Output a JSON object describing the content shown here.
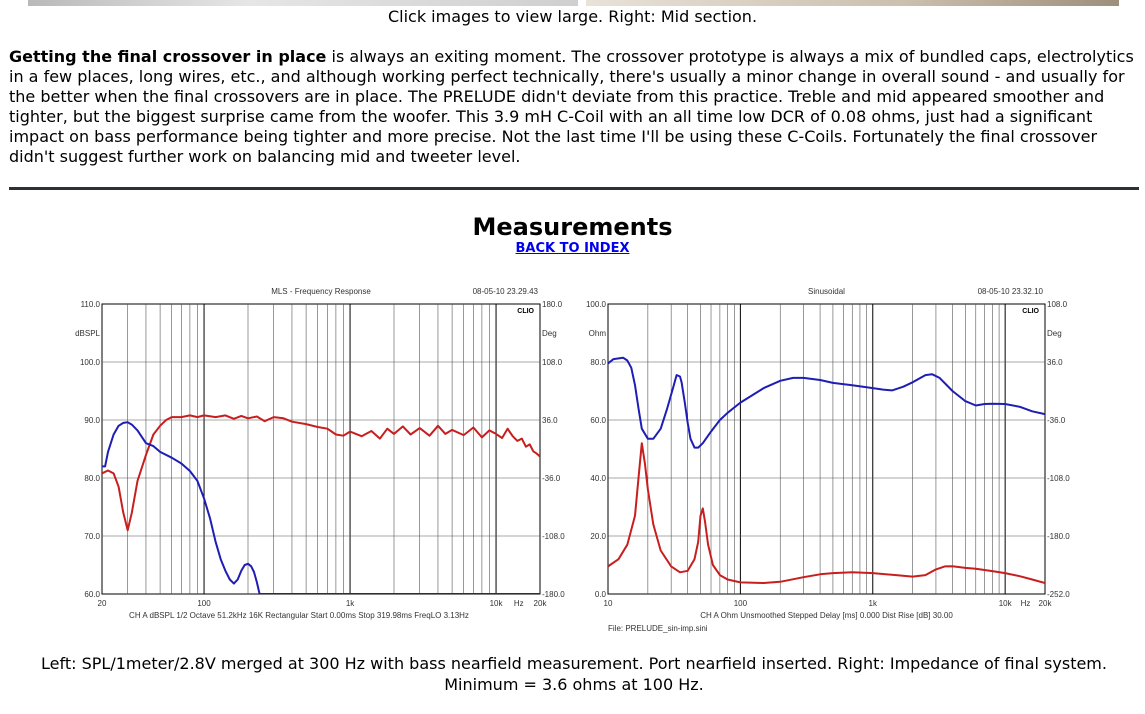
{
  "caption_top": "Click images to view large. Right: Mid section.",
  "article": {
    "lead": "Getting the final crossover in place",
    "body": " is always an exiting moment. The crossover prototype is always a mix of bundled caps, electrolytics in a few places, long wires, etc., and although working perfect technically, there's usually a minor change in overall sound - and usually for the better when the final crossovers are in place. The PRELUDE didn't deviate from this practice. Treble and mid appeared smoother and tighter, but the biggest surprise came from the woofer. This 3.9 mH C-Coil with an all time low DCR of 0.08 ohms, just had a significant impact on bass performance being tighter and more precise. Not the last time I'll be using these C-Coils. Fortunately the final crossover didn't suggest further work on balancing mid and tweeter level."
  },
  "heading": "Measurements",
  "back_link": "BACK TO INDEX",
  "caption_bottom": "Left: SPL/1meter/2.8V merged at 300 Hz with bass nearfield measurement. Port nearfield inserted. Right: Impedance of final system. Minimum = 3.6 ohms at 100 Hz.",
  "chart_data": [
    {
      "type": "line",
      "title": "MLS - Frequency Response",
      "timestamp": "08-05-10 23.29.43",
      "brand": "CLIO",
      "x_scale": "log",
      "xlim": [
        20,
        20000
      ],
      "x_ticks": [
        {
          "v": 20,
          "t": "20"
        },
        {
          "v": 100,
          "t": "100"
        },
        {
          "v": 1000,
          "t": "1k"
        },
        {
          "v": 10000,
          "t": "10k"
        },
        {
          "v": 20000,
          "t": "20k"
        }
      ],
      "x_unit": "Hz",
      "ylim": [
        60,
        110
      ],
      "y_ticks": [
        "110.0",
        "100.0",
        "90.0",
        "80.0",
        "70.0",
        "60.0"
      ],
      "y_unit": "dBSPL",
      "y2lim": [
        -180,
        180
      ],
      "y2_ticks": [
        "180.0",
        "108.0",
        "36.0",
        "-36.0",
        "-108.0",
        "-180.0"
      ],
      "y2_unit": "Deg",
      "footer": "CH A  dBSPL  1/2 Octave  51.2kHz  16K  Rectangular  Start 0.00ms  Stop 319.98ms  FreqLO 3.13Hz",
      "file": "",
      "series": [
        {
          "color": "#c81e1e",
          "axis": "left",
          "points": [
            [
              20,
              80.8
            ],
            [
              22,
              81.3
            ],
            [
              24,
              80.8
            ],
            [
              26,
              78.5
            ],
            [
              28,
              74
            ],
            [
              30,
              71
            ],
            [
              32,
              74
            ],
            [
              35,
              79.5
            ],
            [
              40,
              84
            ],
            [
              45,
              87.5
            ],
            [
              50,
              89
            ],
            [
              55,
              90
            ],
            [
              60,
              90.5
            ],
            [
              70,
              90.5
            ],
            [
              80,
              90.8
            ],
            [
              90,
              90.5
            ],
            [
              100,
              90.8
            ],
            [
              120,
              90.5
            ],
            [
              140,
              90.8
            ],
            [
              160,
              90.2
            ],
            [
              180,
              90.7
            ],
            [
              200,
              90.3
            ],
            [
              230,
              90.6
            ],
            [
              260,
              89.8
            ],
            [
              300,
              90.5
            ],
            [
              350,
              90.3
            ],
            [
              400,
              89.7
            ],
            [
              500,
              89.3
            ],
            [
              600,
              88.8
            ],
            [
              700,
              88.5
            ],
            [
              800,
              87.5
            ],
            [
              900,
              87.3
            ],
            [
              1000,
              88
            ],
            [
              1200,
              87.2
            ],
            [
              1400,
              88.1
            ],
            [
              1600,
              86.8
            ],
            [
              1800,
              88.5
            ],
            [
              2000,
              87.6
            ],
            [
              2300,
              88.9
            ],
            [
              2600,
              87.5
            ],
            [
              3000,
              88.6
            ],
            [
              3500,
              87.3
            ],
            [
              4000,
              89
            ],
            [
              4500,
              87.6
            ],
            [
              5000,
              88.3
            ],
            [
              6000,
              87.4
            ],
            [
              7000,
              88.7
            ],
            [
              8000,
              87
            ],
            [
              9000,
              88.2
            ],
            [
              10000,
              87.6
            ],
            [
              11000,
              86.9
            ],
            [
              12000,
              88.5
            ],
            [
              13000,
              87.2
            ],
            [
              14000,
              86.4
            ],
            [
              15000,
              86.8
            ],
            [
              16000,
              85.4
            ],
            [
              17000,
              85.8
            ],
            [
              18000,
              84.6
            ],
            [
              19000,
              84.2
            ],
            [
              20000,
              83.7
            ]
          ]
        },
        {
          "color": "#1e1eb4",
          "axis": "left",
          "points": [
            [
              20,
              82
            ],
            [
              21,
              82
            ],
            [
              22,
              84.5
            ],
            [
              24,
              87.5
            ],
            [
              26,
              89
            ],
            [
              28,
              89.5
            ],
            [
              30,
              89.6
            ],
            [
              32,
              89.2
            ],
            [
              35,
              88.2
            ],
            [
              40,
              86
            ],
            [
              45,
              85.5
            ],
            [
              50,
              84.5
            ],
            [
              60,
              83.5
            ],
            [
              70,
              82.5
            ],
            [
              80,
              81.2
            ],
            [
              90,
              79.5
            ],
            [
              100,
              76.5
            ],
            [
              110,
              73
            ],
            [
              120,
              69
            ],
            [
              130,
              66
            ],
            [
              140,
              64
            ],
            [
              150,
              62.5
            ],
            [
              160,
              61.8
            ],
            [
              170,
              62.5
            ],
            [
              180,
              64
            ],
            [
              190,
              65
            ],
            [
              200,
              65.2
            ],
            [
              210,
              64.8
            ],
            [
              220,
              63.8
            ],
            [
              230,
              62
            ],
            [
              240,
              60
            ]
          ]
        },
        {
          "color": "#1e1eb4",
          "axis": "left",
          "points": [
            [
              240,
              60
            ],
            [
              20000,
              60
            ]
          ]
        }
      ]
    },
    {
      "type": "line",
      "title": "Sinusoidal",
      "timestamp": "08-05-10 23.32.10",
      "brand": "CLIO",
      "x_scale": "log",
      "xlim": [
        10,
        20000
      ],
      "x_ticks": [
        {
          "v": 10,
          "t": "10"
        },
        {
          "v": 100,
          "t": "100"
        },
        {
          "v": 1000,
          "t": "1k"
        },
        {
          "v": 10000,
          "t": "10k"
        },
        {
          "v": 20000,
          "t": "20k"
        }
      ],
      "x_unit": "Hz",
      "ylim": [
        0,
        100
      ],
      "y_ticks": [
        "100.0",
        "80.0",
        "60.0",
        "40.0",
        "20.0",
        "0.0"
      ],
      "y_unit": "Ohm",
      "y2lim": [
        -252,
        108
      ],
      "y2_ticks": [
        "108.0",
        "36.0",
        "-36.0",
        "-108.0",
        "-180.0",
        "-252.0"
      ],
      "y2_unit": "Deg",
      "footer": "CH A  Ohm  Unsmoothed  Stepped  Delay [ms] 0.000  Dist Rise [dB] 30.00",
      "file": "File: PRELUDE_sin-imp.sini",
      "series": [
        {
          "color": "#c81e1e",
          "axis": "left",
          "points": [
            [
              10,
              9.5
            ],
            [
              12,
              12
            ],
            [
              14,
              17
            ],
            [
              16,
              27
            ],
            [
              17,
              40
            ],
            [
              18,
              52
            ],
            [
              19,
              45
            ],
            [
              20,
              36
            ],
            [
              22,
              24
            ],
            [
              25,
              15
            ],
            [
              30,
              9.5
            ],
            [
              35,
              7.5
            ],
            [
              40,
              8
            ],
            [
              45,
              12
            ],
            [
              48,
              18
            ],
            [
              50,
              27
            ],
            [
              52,
              29.5
            ],
            [
              54,
              25
            ],
            [
              57,
              17
            ],
            [
              62,
              10
            ],
            [
              70,
              6.5
            ],
            [
              80,
              5
            ],
            [
              100,
              4
            ],
            [
              150,
              3.8
            ],
            [
              200,
              4.2
            ],
            [
              300,
              5.8
            ],
            [
              400,
              6.8
            ],
            [
              500,
              7.2
            ],
            [
              700,
              7.5
            ],
            [
              1000,
              7.2
            ],
            [
              1500,
              6.5
            ],
            [
              2000,
              6
            ],
            [
              2500,
              6.5
            ],
            [
              3000,
              8.5
            ],
            [
              3500,
              9.5
            ],
            [
              4000,
              9.6
            ],
            [
              5000,
              9
            ],
            [
              6000,
              8.7
            ],
            [
              8000,
              7.9
            ],
            [
              10000,
              7.2
            ],
            [
              13000,
              6.1
            ],
            [
              16000,
              5
            ],
            [
              20000,
              3.8
            ]
          ]
        },
        {
          "color": "#1e1eb4",
          "axis": "left",
          "points": [
            [
              10,
              79.5
            ],
            [
              11,
              81
            ],
            [
              13,
              81.5
            ],
            [
              14,
              80.5
            ],
            [
              15,
              78
            ],
            [
              16,
              72
            ],
            [
              17,
              64
            ],
            [
              18,
              57
            ],
            [
              20,
              53.5
            ],
            [
              22,
              53.5
            ],
            [
              25,
              57
            ],
            [
              28,
              64
            ],
            [
              31,
              71
            ],
            [
              33,
              75.5
            ],
            [
              35,
              75
            ],
            [
              36,
              73
            ],
            [
              38,
              66
            ],
            [
              40,
              59
            ],
            [
              42,
              53.5
            ],
            [
              45,
              50.5
            ],
            [
              48,
              50.5
            ],
            [
              52,
              52
            ],
            [
              60,
              56
            ],
            [
              70,
              60
            ],
            [
              80,
              62.5
            ],
            [
              100,
              66
            ],
            [
              150,
              71
            ],
            [
              200,
              73.5
            ],
            [
              250,
              74.5
            ],
            [
              300,
              74.5
            ],
            [
              400,
              73.8
            ],
            [
              500,
              72.8
            ],
            [
              700,
              72
            ],
            [
              1000,
              71
            ],
            [
              1200,
              70.5
            ],
            [
              1400,
              70.2
            ],
            [
              1700,
              71.5
            ],
            [
              2000,
              73
            ],
            [
              2500,
              75.5
            ],
            [
              2800,
              75.8
            ],
            [
              3200,
              74.5
            ],
            [
              4000,
              70
            ],
            [
              5000,
              66.5
            ],
            [
              6000,
              65
            ],
            [
              7000,
              65.5
            ],
            [
              8000,
              65.6
            ],
            [
              10000,
              65.5
            ],
            [
              13000,
              64.5
            ],
            [
              16000,
              63
            ],
            [
              20000,
              62
            ]
          ]
        }
      ]
    }
  ]
}
